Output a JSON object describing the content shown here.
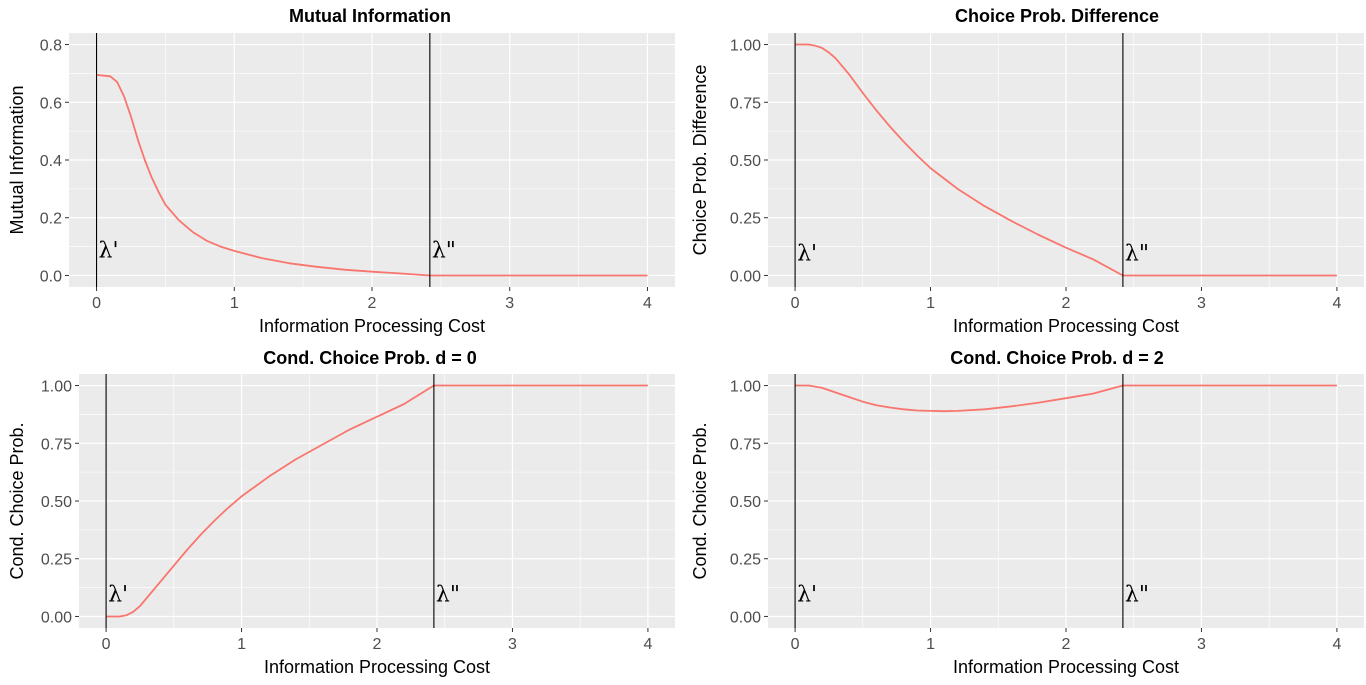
{
  "chart_data": [
    {
      "type": "line",
      "title": "Mutual Information",
      "xlabel": "Information Processing Cost",
      "ylabel": "Mutual Information",
      "xlim": [
        -0.2,
        4.2
      ],
      "ylim": [
        -0.04,
        0.84
      ],
      "xticks": [
        0,
        1,
        2,
        3,
        4
      ],
      "xtick_labels": [
        "0",
        "1",
        "2",
        "3",
        "4"
      ],
      "yticks": [
        0.0,
        0.2,
        0.4,
        0.6,
        0.8
      ],
      "ytick_labels": [
        "0.0",
        "0.2",
        "0.4",
        "0.6",
        "0.8"
      ],
      "grid": true,
      "series": [
        {
          "color": "#f8766d",
          "x": [
            0,
            0.1,
            0.15,
            0.2,
            0.25,
            0.3,
            0.35,
            0.4,
            0.45,
            0.5,
            0.6,
            0.7,
            0.8,
            0.9,
            1.0,
            1.2,
            1.4,
            1.6,
            1.8,
            2.0,
            2.2,
            2.42,
            2.6,
            3.0,
            3.5,
            4.0
          ],
          "y": [
            0.695,
            0.69,
            0.67,
            0.62,
            0.55,
            0.47,
            0.4,
            0.34,
            0.29,
            0.245,
            0.19,
            0.15,
            0.12,
            0.1,
            0.085,
            0.06,
            0.042,
            0.03,
            0.02,
            0.013,
            0.007,
            0.0,
            0.0,
            0.0,
            0.0,
            0.0
          ]
        }
      ],
      "vlines": [
        0.0,
        2.42
      ],
      "annotations": [
        {
          "text": "λ'",
          "x": 0.0,
          "y": 0.09
        },
        {
          "text": "λ\"",
          "x": 2.42,
          "y": 0.09
        }
      ]
    },
    {
      "type": "line",
      "title": "Choice Prob. Difference",
      "xlabel": "Information Processing Cost",
      "ylabel": "Choice Prob. Difference",
      "xlim": [
        -0.2,
        4.2
      ],
      "ylim": [
        -0.05,
        1.05
      ],
      "xticks": [
        0,
        1,
        2,
        3,
        4
      ],
      "xtick_labels": [
        "0",
        "1",
        "2",
        "3",
        "4"
      ],
      "yticks": [
        0.0,
        0.25,
        0.5,
        0.75,
        1.0
      ],
      "ytick_labels": [
        "0.00",
        "0.25",
        "0.50",
        "0.75",
        "1.00"
      ],
      "grid": true,
      "series": [
        {
          "color": "#f8766d",
          "x": [
            0,
            0.1,
            0.15,
            0.2,
            0.25,
            0.3,
            0.4,
            0.5,
            0.6,
            0.7,
            0.8,
            0.9,
            1.0,
            1.2,
            1.4,
            1.6,
            1.8,
            2.0,
            2.2,
            2.42,
            3.0,
            4.0
          ],
          "y": [
            1.0,
            1.0,
            0.995,
            0.985,
            0.965,
            0.94,
            0.87,
            0.79,
            0.715,
            0.645,
            0.58,
            0.52,
            0.465,
            0.375,
            0.3,
            0.235,
            0.175,
            0.12,
            0.07,
            0.0,
            0.0,
            0.0
          ]
        }
      ],
      "vlines": [
        0.0,
        2.42
      ],
      "annotations": [
        {
          "text": "λ'",
          "x": 0.0,
          "y": 0.1
        },
        {
          "text": "λ\"",
          "x": 2.42,
          "y": 0.1
        }
      ]
    },
    {
      "type": "line",
      "title": "Cond. Choice Prob. d = 0",
      "xlabel": "Information Processing Cost",
      "ylabel": "Cond. Choice Prob.",
      "xlim": [
        -0.2,
        4.2
      ],
      "ylim": [
        -0.05,
        1.05
      ],
      "xticks": [
        0,
        1,
        2,
        3,
        4
      ],
      "xtick_labels": [
        "0",
        "1",
        "2",
        "3",
        "4"
      ],
      "yticks": [
        0.0,
        0.25,
        0.5,
        0.75,
        1.0
      ],
      "ytick_labels": [
        "0.00",
        "0.25",
        "0.50",
        "0.75",
        "1.00"
      ],
      "grid": true,
      "series": [
        {
          "color": "#f8766d",
          "x": [
            0,
            0.1,
            0.15,
            0.2,
            0.25,
            0.3,
            0.4,
            0.5,
            0.6,
            0.7,
            0.8,
            0.9,
            1.0,
            1.2,
            1.4,
            1.6,
            1.8,
            2.0,
            2.2,
            2.42,
            3.0,
            4.0
          ],
          "y": [
            0.0,
            0.0,
            0.005,
            0.02,
            0.045,
            0.08,
            0.15,
            0.22,
            0.29,
            0.355,
            0.415,
            0.47,
            0.52,
            0.605,
            0.68,
            0.745,
            0.81,
            0.865,
            0.92,
            1.0,
            1.0,
            1.0
          ]
        }
      ],
      "vlines": [
        0.0,
        2.42
      ],
      "annotations": [
        {
          "text": "λ'",
          "x": 0.0,
          "y": 0.1
        },
        {
          "text": "λ\"",
          "x": 2.42,
          "y": 0.1
        }
      ]
    },
    {
      "type": "line",
      "title": "Cond. Choice Prob. d = 2",
      "xlabel": "Information Processing Cost",
      "ylabel": "Cond. Choice Prob.",
      "xlim": [
        -0.2,
        4.2
      ],
      "ylim": [
        -0.05,
        1.05
      ],
      "xticks": [
        0,
        1,
        2,
        3,
        4
      ],
      "xtick_labels": [
        "0",
        "1",
        "2",
        "3",
        "4"
      ],
      "yticks": [
        0.0,
        0.25,
        0.5,
        0.75,
        1.0
      ],
      "ytick_labels": [
        "0.00",
        "0.25",
        "0.50",
        "0.75",
        "1.00"
      ],
      "grid": true,
      "series": [
        {
          "color": "#f8766d",
          "x": [
            0,
            0.1,
            0.2,
            0.3,
            0.4,
            0.5,
            0.6,
            0.7,
            0.8,
            0.9,
            1.0,
            1.1,
            1.2,
            1.4,
            1.6,
            1.8,
            2.0,
            2.2,
            2.42,
            3.0,
            4.0
          ],
          "y": [
            1.0,
            1.0,
            0.99,
            0.97,
            0.95,
            0.93,
            0.915,
            0.905,
            0.897,
            0.892,
            0.89,
            0.889,
            0.89,
            0.897,
            0.91,
            0.926,
            0.945,
            0.965,
            1.0,
            1.0,
            1.0
          ]
        }
      ],
      "vlines": [
        0.0,
        2.42
      ],
      "annotations": [
        {
          "text": "λ'",
          "x": 0.0,
          "y": 0.1
        },
        {
          "text": "λ\"",
          "x": 2.42,
          "y": 0.1
        }
      ]
    }
  ]
}
